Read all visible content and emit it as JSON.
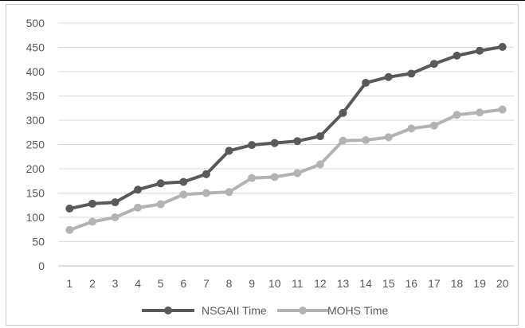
{
  "chart_data": {
    "type": "line",
    "title": "",
    "xlabel": "",
    "ylabel": "",
    "categories": [
      "1",
      "2",
      "3",
      "4",
      "5",
      "6",
      "7",
      "8",
      "9",
      "10",
      "11",
      "12",
      "13",
      "14",
      "15",
      "16",
      "17",
      "18",
      "19",
      "20"
    ],
    "ylim": [
      0,
      500
    ],
    "yticks": [
      0,
      50,
      100,
      150,
      200,
      250,
      300,
      350,
      400,
      450,
      500
    ],
    "grid": "horizontal",
    "legend_position": "bottom",
    "series": [
      {
        "name": "NSGAII Time",
        "color": "#595959",
        "values": [
          118,
          128,
          131,
          157,
          170,
          173,
          189,
          237,
          249,
          253,
          257,
          267,
          315,
          377,
          389,
          396,
          416,
          433,
          443,
          451
        ]
      },
      {
        "name": "MOHS Time",
        "color": "#b3b3b3",
        "values": [
          74,
          91,
          100,
          120,
          127,
          147,
          150,
          152,
          181,
          183,
          191,
          209,
          258,
          259,
          265,
          283,
          289,
          311,
          316,
          322
        ]
      }
    ]
  }
}
